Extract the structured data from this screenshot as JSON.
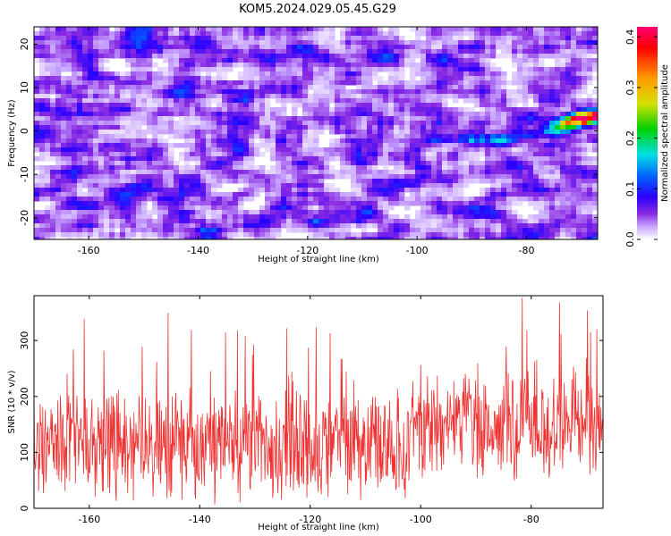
{
  "chart_data": [
    {
      "type": "heatmap",
      "title": "KOM5.2024.029.05.45.G29",
      "xlabel": "Height of straight line (km)",
      "ylabel": "Frequency (Hz)",
      "xlim": [
        -170,
        -67
      ],
      "ylim": [
        -25,
        24
      ],
      "x_ticks": [
        -160,
        -140,
        -120,
        -100,
        -80
      ],
      "y_ticks": [
        -20,
        -10,
        0,
        10,
        20
      ],
      "colorbar": {
        "label": "Normalized spectral amplitude",
        "range": [
          0,
          0.42
        ],
        "ticks": [
          "0.0",
          "0.1",
          "0.2",
          "0.3",
          "0.4"
        ],
        "colors": [
          "#ffffff",
          "#9a4cff",
          "#4400ff",
          "#0044ff",
          "#00e5e5",
          "#00dd00",
          "#e5e500",
          "#ff8800",
          "#ff0000",
          "#ff0088"
        ]
      },
      "noise_level": 0.04,
      "signal_track": [
        {
          "x": -110,
          "y": -2.5,
          "amp": 0.06
        },
        {
          "x": -100,
          "y": -2.0,
          "amp": 0.08
        },
        {
          "x": -95,
          "y": -2.0,
          "amp": 0.09
        },
        {
          "x": -90,
          "y": -2.0,
          "amp": 0.1
        },
        {
          "x": -85,
          "y": -2.0,
          "amp": 0.11
        },
        {
          "x": -80,
          "y": -1.0,
          "amp": 0.12
        },
        {
          "x": -75,
          "y": 0.0,
          "amp": 0.15
        },
        {
          "x": -72,
          "y": 1.5,
          "amp": 0.22
        },
        {
          "x": -70,
          "y": 2.5,
          "amp": 0.3
        },
        {
          "x": -68,
          "y": 3.5,
          "amp": 0.42
        }
      ]
    },
    {
      "type": "line",
      "title": "",
      "xlabel": "Height of straight line (km)",
      "ylabel": "SNR (10 * v/v)",
      "xlim": [
        -170,
        -67
      ],
      "ylim": [
        0,
        380
      ],
      "x_ticks": [
        -160,
        -140,
        -120,
        -100,
        -80
      ],
      "y_ticks": [
        0,
        100,
        200,
        300
      ],
      "color": "#ee3333",
      "sample_count": 1100,
      "baseline_mean": 110,
      "high_region_mean": 145,
      "high_region_start": -102,
      "max_value": 380
    }
  ]
}
